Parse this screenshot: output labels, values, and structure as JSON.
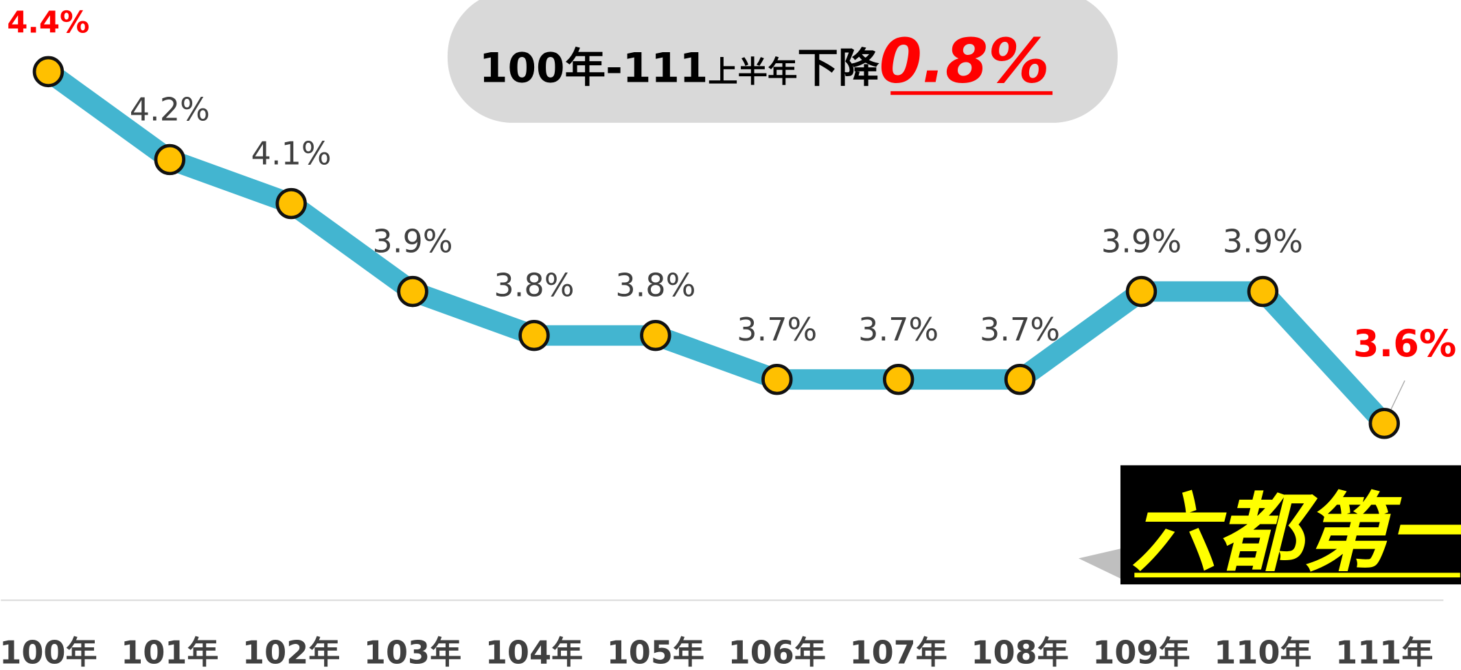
{
  "chart_data": {
    "type": "line",
    "title_parts": [
      "100年-111",
      "上半年",
      "下降",
      "0.8%"
    ],
    "annotation": "六都第一",
    "categories": [
      "100年",
      "101年",
      "102年",
      "103年",
      "104年",
      "105年",
      "106年",
      "107年",
      "108年",
      "109年",
      "110年",
      "111年"
    ],
    "values": [
      4.4,
      4.2,
      4.1,
      3.9,
      3.8,
      3.8,
      3.7,
      3.7,
      3.7,
      3.9,
      3.9,
      3.6
    ],
    "value_labels": [
      "4.4%",
      "4.2%",
      "4.1%",
      "3.9%",
      "3.8%",
      "3.8%",
      "3.7%",
      "3.7%",
      "3.7%",
      "3.9%",
      "3.9%",
      "3.6%"
    ],
    "color": "#43b5d0",
    "marker_color": "#ffc000",
    "label_color": "#404040",
    "highlight_color": "#ff0000",
    "highlight_indices": [
      0,
      11
    ]
  }
}
